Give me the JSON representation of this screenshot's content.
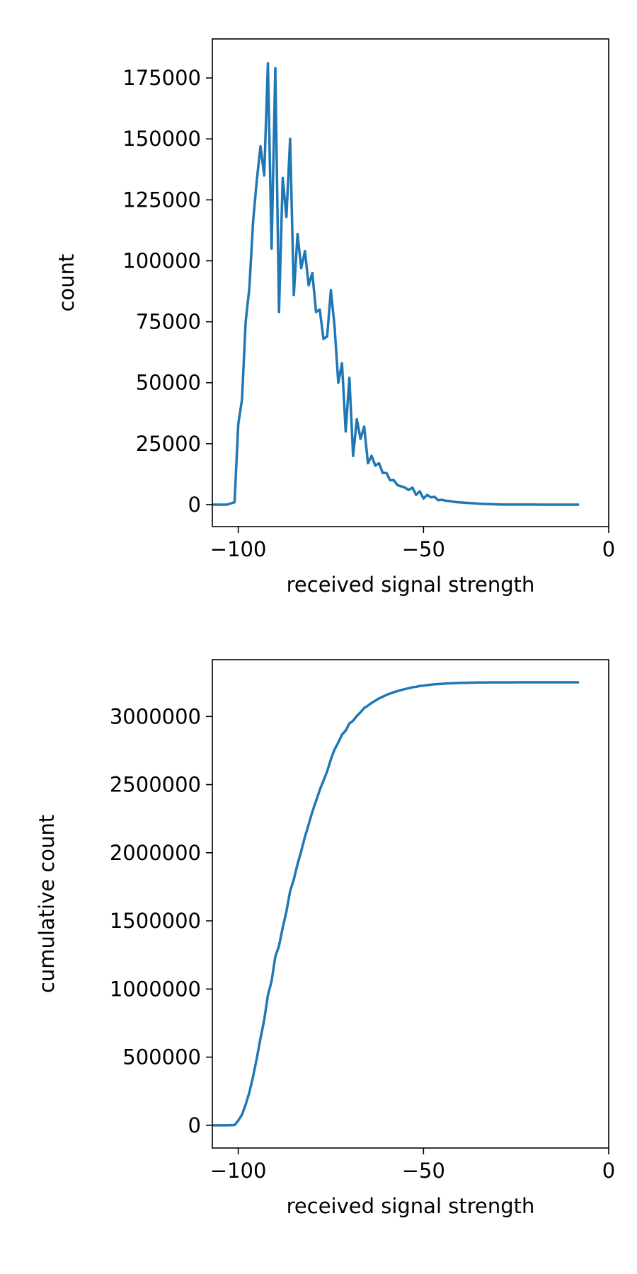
{
  "chart_data": [
    {
      "type": "line",
      "xlabel": "received signal strength",
      "ylabel": "count",
      "xlim": [
        -107,
        0
      ],
      "ylim": [
        -9000,
        191000
      ],
      "xticks": [
        {
          "value": -100,
          "label": "−100"
        },
        {
          "value": -50,
          "label": "−50"
        },
        0
      ],
      "yticks": [
        0,
        25000,
        50000,
        75000,
        100000,
        125000,
        150000,
        175000
      ],
      "x": [
        -107,
        -106,
        -105,
        -104,
        -103,
        -102,
        -101,
        -100,
        -99,
        -98,
        -97,
        -96,
        -95,
        -94,
        -93,
        -92,
        -91,
        -90,
        -89,
        -88,
        -87,
        -86,
        -85,
        -84,
        -83,
        -82,
        -81,
        -80,
        -79,
        -78,
        -77,
        -76,
        -75,
        -74,
        -73,
        -72,
        -71,
        -70,
        -69,
        -68,
        -67,
        -66,
        -65,
        -64,
        -63,
        -62,
        -61,
        -60,
        -59,
        -58,
        -57,
        -56,
        -55,
        -54,
        -53,
        -52,
        -51,
        -50,
        -49,
        -48,
        -47,
        -46,
        -45,
        -44,
        -43,
        -42,
        -41,
        -40,
        -39,
        -38,
        -37,
        -36,
        -35,
        -34,
        -33,
        -32,
        -31,
        -30,
        -29,
        -28,
        -27,
        -26,
        -25,
        -24,
        -23,
        -22,
        -21,
        -20,
        -19,
        -18,
        -17,
        -16,
        -15,
        -14,
        -13,
        -12,
        -11,
        -10,
        -9,
        -8
      ],
      "color": "#1f77b4",
      "values": [
        0,
        0,
        0,
        0,
        0,
        500,
        1000,
        33000,
        43000,
        75000,
        89000,
        116000,
        133000,
        147000,
        135000,
        181000,
        105000,
        179000,
        79000,
        134000,
        118000,
        150000,
        86000,
        111000,
        97000,
        104000,
        90000,
        95000,
        79000,
        80000,
        68000,
        69000,
        88000,
        73000,
        50000,
        58000,
        30000,
        52000,
        20000,
        35000,
        27000,
        32000,
        17000,
        20000,
        16000,
        17000,
        13000,
        13000,
        10000,
        10000,
        8000,
        7500,
        7000,
        6000,
        7000,
        4000,
        5500,
        2500,
        4000,
        3000,
        3200,
        1800,
        2000,
        1600,
        1500,
        1200,
        1000,
        900,
        800,
        700,
        600,
        500,
        400,
        300,
        250,
        200,
        150,
        100,
        50,
        50,
        50,
        50,
        50,
        50,
        50,
        50,
        50,
        50,
        0,
        0,
        0,
        0,
        0,
        0,
        0,
        0,
        0,
        0,
        0,
        0
      ]
    },
    {
      "type": "line",
      "xlabel": "received signal strength",
      "ylabel": "cumulative count",
      "xlim": [
        -107,
        0
      ],
      "ylim": [
        -167000,
        3417000
      ],
      "xticks": [
        {
          "value": -100,
          "label": "−100"
        },
        {
          "value": -50,
          "label": "−50"
        },
        0
      ],
      "yticks": [
        0,
        500000,
        1000000,
        1500000,
        2000000,
        2500000,
        3000000
      ],
      "x": [
        -107,
        -106,
        -105,
        -104,
        -103,
        -102,
        -101,
        -100,
        -99,
        -98,
        -97,
        -96,
        -95,
        -94,
        -93,
        -92,
        -91,
        -90,
        -89,
        -88,
        -87,
        -86,
        -85,
        -84,
        -83,
        -82,
        -81,
        -80,
        -79,
        -78,
        -77,
        -76,
        -75,
        -74,
        -73,
        -72,
        -71,
        -70,
        -69,
        -68,
        -67,
        -66,
        -65,
        -64,
        -63,
        -62,
        -61,
        -60,
        -59,
        -58,
        -57,
        -56,
        -55,
        -54,
        -53,
        -52,
        -51,
        -50,
        -49,
        -48,
        -47,
        -46,
        -45,
        -44,
        -43,
        -42,
        -41,
        -40,
        -39,
        -38,
        -37,
        -36,
        -35,
        -34,
        -33,
        -32,
        -31,
        -30,
        -29,
        -28,
        -27,
        -26,
        -25,
        -24,
        -23,
        -22,
        -21,
        -20,
        -19,
        -18,
        -17,
        -16,
        -15,
        -14,
        -13,
        -12,
        -11,
        -10,
        -9,
        -8
      ],
      "color": "#1f77b4",
      "values": [
        0,
        0,
        0,
        0,
        0,
        500,
        1500,
        34500,
        77500,
        152500,
        241500,
        357500,
        490500,
        637500,
        772500,
        953500,
        1058500,
        1237500,
        1316500,
        1450500,
        1568500,
        1718500,
        1804500,
        1915500,
        2012500,
        2116500,
        2206500,
        2301500,
        2380500,
        2460500,
        2528500,
        2597500,
        2685500,
        2758500,
        2808500,
        2866500,
        2896500,
        2948500,
        2968500,
        3003500,
        3030500,
        3062500,
        3079500,
        3099500,
        3115500,
        3132500,
        3145500,
        3158500,
        3168500,
        3178500,
        3186500,
        3194000,
        3201000,
        3207000,
        3214000,
        3218000,
        3223500,
        3226000,
        3230000,
        3233000,
        3236200,
        3238000,
        3240000,
        3241600,
        3243100,
        3244300,
        3245300,
        3246200,
        3247000,
        3247700,
        3248300,
        3248800,
        3249200,
        3249500,
        3249750,
        3249950,
        3250100,
        3250200,
        3250250,
        3250300,
        3250350,
        3250400,
        3250450,
        3250500,
        3250550,
        3250600,
        3250650,
        3250700,
        3250700,
        3250700,
        3250700,
        3250700,
        3250700,
        3250700,
        3250700,
        3250700,
        3250700,
        3250700,
        3250700,
        3250700
      ]
    }
  ]
}
